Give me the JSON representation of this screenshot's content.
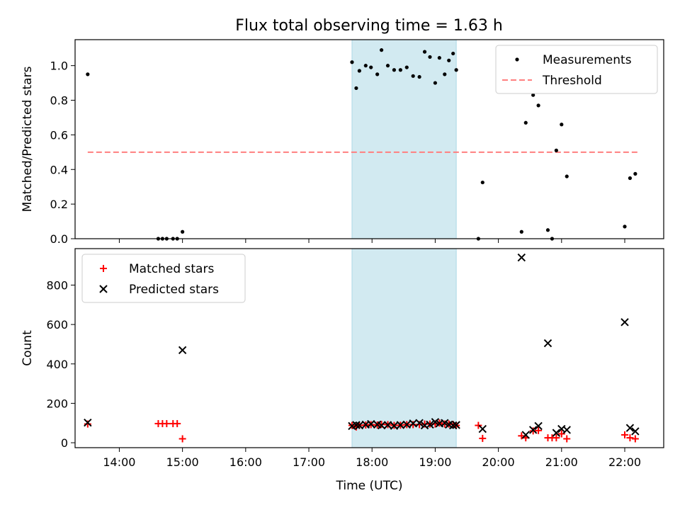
{
  "title": "Flux total observing time = 1.63 h",
  "colors": {
    "shade": "#add8e6",
    "measurement": "#000000",
    "threshold": "#ff7f7f",
    "matched": "#ff0000",
    "predicted": "#000000"
  },
  "chart_data": [
    {
      "type": "scatter",
      "panel": "top",
      "ylabel": "Matched/Predicted stars",
      "xlim": [
        "13:18",
        "22:37"
      ],
      "ylim": [
        0,
        1.15
      ],
      "yticks": [
        "0.0",
        "0.2",
        "0.4",
        "0.6",
        "0.8",
        "1.0"
      ],
      "grid": false,
      "legend_position": "upper-right",
      "shaded_span": [
        "17:41",
        "19:20"
      ],
      "threshold": {
        "name": "Threshold",
        "y": 0.5,
        "x": [
          "13:30",
          "22:12"
        ]
      },
      "series": [
        {
          "name": "Measurements",
          "points": [
            [
              "13:30",
              0.95
            ],
            [
              "14:37",
              0.0
            ],
            [
              "14:41",
              0.0
            ],
            [
              "14:45",
              0.0
            ],
            [
              "14:51",
              0.0
            ],
            [
              "14:55",
              0.0
            ],
            [
              "15:00",
              0.04
            ],
            [
              "17:41",
              1.02
            ],
            [
              "17:45",
              0.87
            ],
            [
              "17:48",
              0.97
            ],
            [
              "17:54",
              1.0
            ],
            [
              "17:59",
              0.99
            ],
            [
              "18:05",
              0.95
            ],
            [
              "18:09",
              1.09
            ],
            [
              "18:15",
              1.0
            ],
            [
              "18:21",
              0.975
            ],
            [
              "18:27",
              0.975
            ],
            [
              "18:33",
              0.99
            ],
            [
              "18:39",
              0.94
            ],
            [
              "18:45",
              0.935
            ],
            [
              "18:50",
              1.08
            ],
            [
              "18:55",
              1.05
            ],
            [
              "19:00",
              0.9
            ],
            [
              "19:04",
              1.045
            ],
            [
              "19:09",
              0.95
            ],
            [
              "19:13",
              1.03
            ],
            [
              "19:17",
              1.07
            ],
            [
              "19:20",
              0.975
            ],
            [
              "19:41",
              0.0
            ],
            [
              "19:45",
              0.325
            ],
            [
              "20:22",
              0.04
            ],
            [
              "20:26",
              0.67
            ],
            [
              "20:33",
              0.83
            ],
            [
              "20:38",
              0.77
            ],
            [
              "20:47",
              0.05
            ],
            [
              "20:51",
              0.0
            ],
            [
              "20:55",
              0.51
            ],
            [
              "21:00",
              0.66
            ],
            [
              "21:05",
              0.36
            ],
            [
              "22:00",
              0.07
            ],
            [
              "22:05",
              0.35
            ],
            [
              "22:10",
              0.375
            ]
          ]
        }
      ]
    },
    {
      "type": "scatter",
      "panel": "bottom",
      "xlabel": "Time (UTC)",
      "ylabel": "Count",
      "xlim": [
        "13:18",
        "22:37"
      ],
      "ylim": [
        -25,
        985
      ],
      "xticks": [
        "14:00",
        "15:00",
        "16:00",
        "17:00",
        "18:00",
        "19:00",
        "20:00",
        "21:00",
        "22:00"
      ],
      "yticks": [
        "0",
        "200",
        "400",
        "600",
        "800"
      ],
      "grid": false,
      "legend_position": "upper-left",
      "shaded_span": [
        "17:41",
        "19:20"
      ],
      "series": [
        {
          "name": "Matched stars",
          "marker": "plus",
          "points": [
            [
              "13:30",
              95
            ],
            [
              "14:37",
              97
            ],
            [
              "14:41",
              97
            ],
            [
              "14:45",
              97
            ],
            [
              "14:51",
              97
            ],
            [
              "14:55",
              97
            ],
            [
              "15:00",
              20
            ],
            [
              "17:41",
              88
            ],
            [
              "17:45",
              80
            ],
            [
              "17:48",
              88
            ],
            [
              "17:54",
              90
            ],
            [
              "17:59",
              92
            ],
            [
              "18:05",
              90
            ],
            [
              "18:09",
              93
            ],
            [
              "18:15",
              92
            ],
            [
              "18:21",
              88
            ],
            [
              "18:27",
              89
            ],
            [
              "18:33",
              92
            ],
            [
              "18:39",
              92
            ],
            [
              "18:45",
              92
            ],
            [
              "18:50",
              95
            ],
            [
              "18:55",
              95
            ],
            [
              "19:00",
              95
            ],
            [
              "19:04",
              100
            ],
            [
              "19:09",
              95
            ],
            [
              "19:13",
              95
            ],
            [
              "19:17",
              93
            ],
            [
              "19:20",
              88
            ],
            [
              "19:41",
              88
            ],
            [
              "19:45",
              22
            ],
            [
              "20:22",
              35
            ],
            [
              "20:26",
              25
            ],
            [
              "20:33",
              60
            ],
            [
              "20:38",
              62
            ],
            [
              "20:47",
              25
            ],
            [
              "20:51",
              25
            ],
            [
              "20:55",
              25
            ],
            [
              "21:00",
              45
            ],
            [
              "21:05",
              20
            ],
            [
              "22:00",
              40
            ],
            [
              "22:05",
              25
            ],
            [
              "22:10",
              20
            ]
          ]
        },
        {
          "name": "Predicted stars",
          "marker": "x",
          "points": [
            [
              "13:30",
              102
            ],
            [
              "15:00",
              470
            ],
            [
              "17:41",
              85
            ],
            [
              "17:45",
              90
            ],
            [
              "17:48",
              88
            ],
            [
              "17:54",
              92
            ],
            [
              "17:59",
              95
            ],
            [
              "18:05",
              92
            ],
            [
              "18:09",
              88
            ],
            [
              "18:15",
              90
            ],
            [
              "18:21",
              86
            ],
            [
              "18:27",
              90
            ],
            [
              "18:33",
              92
            ],
            [
              "18:39",
              98
            ],
            [
              "18:45",
              100
            ],
            [
              "18:50",
              88
            ],
            [
              "18:55",
              92
            ],
            [
              "19:00",
              105
            ],
            [
              "19:04",
              98
            ],
            [
              "19:09",
              100
            ],
            [
              "19:13",
              92
            ],
            [
              "19:17",
              88
            ],
            [
              "19:20",
              90
            ],
            [
              "19:45",
              70
            ],
            [
              "20:22",
              940
            ],
            [
              "20:26",
              40
            ],
            [
              "20:33",
              65
            ],
            [
              "20:38",
              85
            ],
            [
              "20:47",
              505
            ],
            [
              "20:55",
              50
            ],
            [
              "21:00",
              70
            ],
            [
              "21:05",
              65
            ],
            [
              "22:00",
              612
            ],
            [
              "22:05",
              75
            ],
            [
              "22:10",
              58
            ]
          ]
        }
      ]
    }
  ]
}
